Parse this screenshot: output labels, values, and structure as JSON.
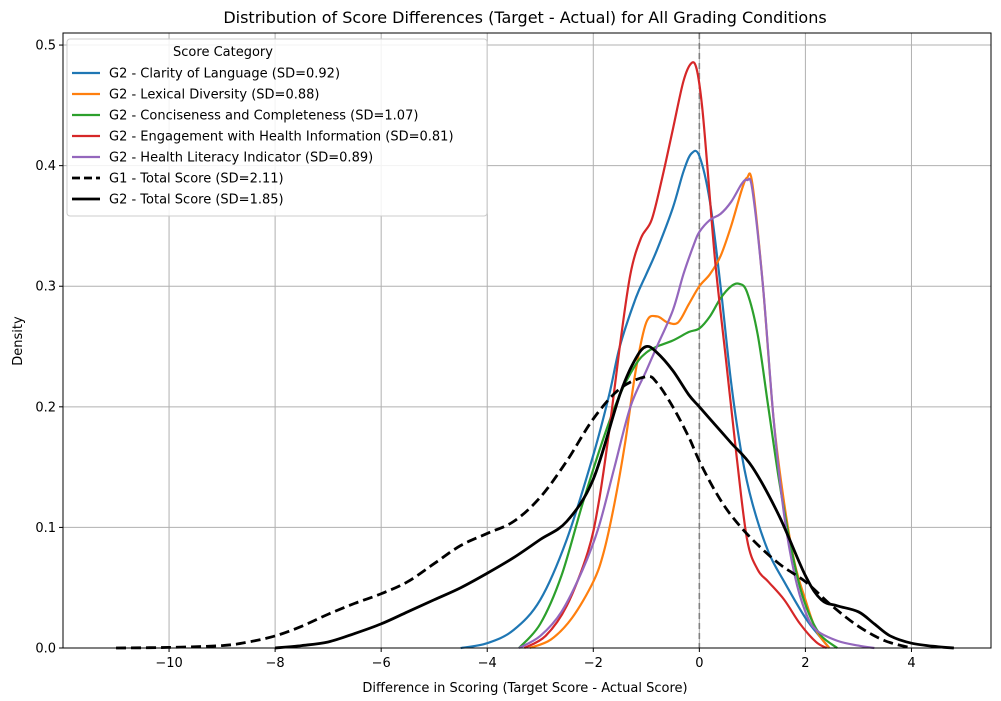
{
  "chart_data": {
    "type": "line",
    "title": "Distribution of Score Differences (Target - Actual) for All Grading Conditions",
    "xlabel": "Difference in Scoring (Target Score - Actual Score)",
    "ylabel": "Density",
    "xlim": [
      -12.0,
      5.5
    ],
    "ylim": [
      0,
      0.51
    ],
    "xticks": [
      -10,
      -8,
      -6,
      -4,
      -2,
      0,
      2,
      4
    ],
    "yticks": [
      0.0,
      0.1,
      0.2,
      0.3,
      0.4,
      0.5
    ],
    "xtick_labels": [
      "−10",
      "−8",
      "−6",
      "−4",
      "−2",
      "0",
      "2",
      "4"
    ],
    "ytick_labels": [
      "0.0",
      "0.1",
      "0.2",
      "0.3",
      "0.4",
      "0.5"
    ],
    "grid": true,
    "reference_line": {
      "x": 0,
      "style": "dashed",
      "color": "#808080"
    },
    "legend": {
      "title": "Score Category",
      "position": "top-left"
    },
    "series": [
      {
        "name": "G2 - Clarity of Language (SD=0.92)",
        "color": "#1f77b4",
        "style": "solid",
        "x": [
          -4.5,
          -4.0,
          -3.5,
          -3.0,
          -2.5,
          -2.0,
          -1.7,
          -1.5,
          -1.2,
          -1.0,
          -0.8,
          -0.5,
          -0.3,
          -0.15,
          0.0,
          0.2,
          0.4,
          0.6,
          0.8,
          1.0,
          1.3,
          1.6,
          2.0,
          2.3,
          2.45
        ],
        "y": [
          0.0,
          0.004,
          0.015,
          0.04,
          0.09,
          0.16,
          0.21,
          0.25,
          0.29,
          0.31,
          0.33,
          0.365,
          0.395,
          0.41,
          0.408,
          0.37,
          0.3,
          0.22,
          0.16,
          0.12,
          0.08,
          0.055,
          0.025,
          0.008,
          0.0
        ]
      },
      {
        "name": "G2 - Lexical Diversity (SD=0.88)",
        "color": "#ff7f0e",
        "style": "solid",
        "x": [
          -3.2,
          -2.8,
          -2.4,
          -2.0,
          -1.8,
          -1.6,
          -1.4,
          -1.2,
          -1.0,
          -0.8,
          -0.6,
          -0.4,
          -0.2,
          0.0,
          0.2,
          0.4,
          0.6,
          0.8,
          0.9,
          1.0,
          1.2,
          1.4,
          1.6,
          1.8,
          2.0,
          2.2,
          2.45
        ],
        "y": [
          0.0,
          0.007,
          0.025,
          0.055,
          0.08,
          0.12,
          0.17,
          0.23,
          0.27,
          0.275,
          0.27,
          0.27,
          0.285,
          0.3,
          0.31,
          0.325,
          0.35,
          0.38,
          0.39,
          0.385,
          0.3,
          0.19,
          0.12,
          0.07,
          0.04,
          0.015,
          0.0
        ]
      },
      {
        "name": "G2 - Conciseness and Completeness (SD=1.07)",
        "color": "#2ca02c",
        "style": "solid",
        "x": [
          -3.4,
          -3.0,
          -2.6,
          -2.2,
          -1.8,
          -1.5,
          -1.2,
          -1.0,
          -0.8,
          -0.5,
          -0.2,
          0.0,
          0.2,
          0.4,
          0.6,
          0.75,
          0.9,
          1.1,
          1.3,
          1.5,
          1.7,
          1.9,
          2.1,
          2.3,
          2.6
        ],
        "y": [
          0.0,
          0.02,
          0.06,
          0.12,
          0.175,
          0.21,
          0.235,
          0.245,
          0.25,
          0.255,
          0.262,
          0.265,
          0.275,
          0.29,
          0.3,
          0.302,
          0.295,
          0.26,
          0.2,
          0.14,
          0.09,
          0.05,
          0.025,
          0.01,
          0.0
        ]
      },
      {
        "name": "G2 - Engagement with Health Information (SD=0.81)",
        "color": "#d62728",
        "style": "solid",
        "x": [
          -3.3,
          -2.9,
          -2.5,
          -2.1,
          -1.9,
          -1.7,
          -1.5,
          -1.3,
          -1.1,
          -0.9,
          -0.7,
          -0.5,
          -0.3,
          -0.15,
          -0.05,
          0.05,
          0.15,
          0.3,
          0.5,
          0.7,
          0.9,
          1.1,
          1.3,
          1.6,
          1.9,
          2.2,
          2.4
        ],
        "y": [
          0.0,
          0.01,
          0.035,
          0.08,
          0.12,
          0.18,
          0.25,
          0.31,
          0.34,
          0.355,
          0.39,
          0.43,
          0.47,
          0.485,
          0.48,
          0.45,
          0.4,
          0.32,
          0.24,
          0.16,
          0.09,
          0.065,
          0.055,
          0.04,
          0.02,
          0.005,
          0.0
        ]
      },
      {
        "name": "G2 - Health Literacy Indicator (SD=0.89)",
        "color": "#9467bd",
        "style": "solid",
        "x": [
          -3.4,
          -3.0,
          -2.6,
          -2.2,
          -1.9,
          -1.6,
          -1.3,
          -1.0,
          -0.8,
          -0.5,
          -0.3,
          -0.1,
          0.0,
          0.2,
          0.4,
          0.6,
          0.8,
          0.9,
          1.0,
          1.2,
          1.4,
          1.6,
          1.8,
          2.0,
          2.2,
          2.6,
          3.0,
          3.3
        ],
        "y": [
          0.0,
          0.01,
          0.03,
          0.065,
          0.1,
          0.15,
          0.2,
          0.23,
          0.25,
          0.28,
          0.31,
          0.335,
          0.345,
          0.355,
          0.36,
          0.37,
          0.385,
          0.388,
          0.38,
          0.3,
          0.19,
          0.11,
          0.06,
          0.03,
          0.015,
          0.006,
          0.002,
          0.0
        ]
      },
      {
        "name": "G1 - Total Score (SD=2.11)",
        "color": "#000000",
        "style": "dashed",
        "x": [
          -11.0,
          -10.0,
          -9.0,
          -8.5,
          -8.0,
          -7.5,
          -7.0,
          -6.5,
          -6.0,
          -5.5,
          -5.0,
          -4.5,
          -4.0,
          -3.5,
          -3.0,
          -2.5,
          -2.0,
          -1.5,
          -1.0,
          -0.8,
          -0.5,
          -0.2,
          0.0,
          0.3,
          0.6,
          1.0,
          1.5,
          2.0,
          2.5,
          3.0,
          3.5,
          4.0
        ],
        "y": [
          0.0,
          0.0005,
          0.002,
          0.005,
          0.01,
          0.018,
          0.028,
          0.037,
          0.045,
          0.055,
          0.07,
          0.085,
          0.095,
          0.105,
          0.125,
          0.155,
          0.19,
          0.215,
          0.225,
          0.22,
          0.2,
          0.175,
          0.155,
          0.13,
          0.11,
          0.09,
          0.07,
          0.055,
          0.035,
          0.018,
          0.006,
          0.0
        ]
      },
      {
        "name": "G2 - Total Score (SD=1.85)",
        "color": "#000000",
        "style": "solid",
        "x": [
          -8.0,
          -7.5,
          -7.0,
          -6.5,
          -6.0,
          -5.5,
          -5.0,
          -4.5,
          -4.0,
          -3.5,
          -3.0,
          -2.5,
          -2.0,
          -1.5,
          -1.2,
          -1.0,
          -0.8,
          -0.5,
          -0.2,
          0.0,
          0.3,
          0.6,
          1.0,
          1.5,
          2.0,
          2.3,
          2.6,
          3.0,
          3.3,
          3.6,
          4.0,
          4.5,
          4.8
        ],
        "y": [
          0.0,
          0.002,
          0.005,
          0.012,
          0.02,
          0.03,
          0.04,
          0.05,
          0.062,
          0.075,
          0.09,
          0.105,
          0.14,
          0.21,
          0.24,
          0.25,
          0.245,
          0.23,
          0.21,
          0.2,
          0.185,
          0.17,
          0.15,
          0.11,
          0.06,
          0.04,
          0.035,
          0.03,
          0.02,
          0.01,
          0.004,
          0.001,
          0.0
        ]
      }
    ]
  }
}
